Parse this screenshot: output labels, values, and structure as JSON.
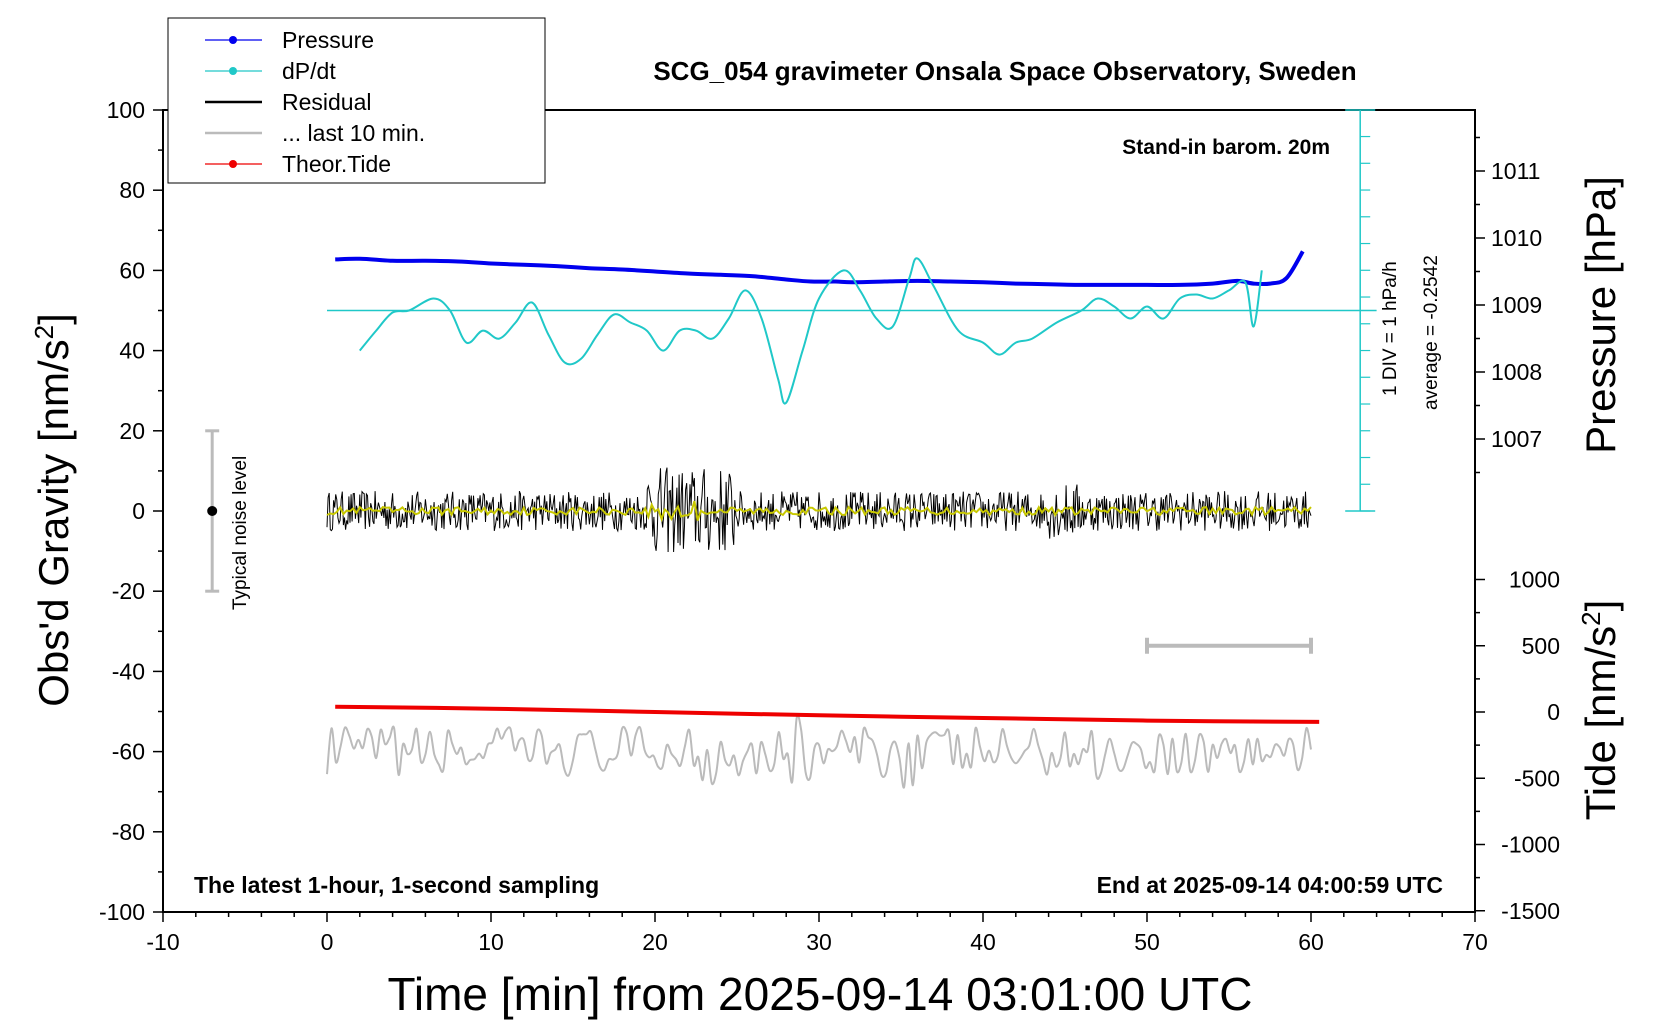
{
  "chart_data": {
    "type": "line",
    "title": "SCG_054 gravimeter Onsala Space Observatory, Sweden",
    "xlabel": "Time [min] from 2025-09-14 03:01:00 UTC",
    "ylabel": "Obs'd Gravity [nm/s",
    "ylabel_sup": "2",
    "ylabel_end": "]",
    "y2label": "Pressure [hPa]",
    "y3label": "Tide [nm/s",
    "y3label_sup": "2",
    "y3label_end": "]",
    "xlim": [
      -10,
      70
    ],
    "ylim": [
      -100,
      100
    ],
    "xticks": [
      -10,
      0,
      10,
      20,
      30,
      40,
      50,
      60,
      70
    ],
    "yticks": [
      100,
      80,
      60,
      40,
      20,
      0,
      -20,
      -40,
      -60,
      -80,
      -100
    ],
    "pressure_ticks": [
      1011,
      1010,
      1009,
      1008,
      1007
    ],
    "tide_ticks": [
      1000,
      500,
      0,
      -500,
      -1000,
      -1500
    ],
    "legend_position": "top-left",
    "legend": [
      {
        "label": "Pressure",
        "color": "#0000ee",
        "marker": true
      },
      {
        "label": "dP/dt",
        "color": "#20c8c8",
        "marker": true
      },
      {
        "label": "Residual",
        "color": "#000000",
        "marker": false
      },
      {
        "label": "... last 10 min.",
        "color": "#bbbbbb",
        "marker": false
      },
      {
        "label": "Theor.Tide",
        "color": "#ee0000",
        "marker": true
      }
    ],
    "annotations": {
      "station_note": "Stand-in barom. 20m",
      "scale_note": "1 DIV = 1 hPa/h",
      "average_note": "average = -0.2542",
      "noise_label": "Typical noise level",
      "bottom_left": "The latest 1-hour, 1-second sampling",
      "bottom_right": "End at 2025-09-14 04:00:59 UTC"
    },
    "noise_bar": {
      "x": -7,
      "y_low": -20,
      "y_high": 20
    },
    "last10_bar": {
      "x_start": 50,
      "x_end": 60,
      "tide_value": 500
    },
    "dpdt_zero_level": 50,
    "series": [
      {
        "name": "Pressure",
        "color": "#0000ee",
        "x": [
          0.5,
          2,
          4,
          6,
          8,
          10,
          12,
          14,
          16,
          18,
          20,
          22,
          24,
          26,
          28,
          29.5,
          31,
          32,
          34,
          36,
          38,
          40,
          42,
          44,
          46,
          48,
          50,
          52,
          54,
          55.5,
          56.5,
          57.5,
          58.5,
          59.5
        ],
        "y": [
          1009.68,
          1009.69,
          1009.66,
          1009.66,
          1009.65,
          1009.62,
          1009.6,
          1009.58,
          1009.55,
          1009.53,
          1009.5,
          1009.47,
          1009.45,
          1009.43,
          1009.38,
          1009.35,
          1009.35,
          1009.34,
          1009.35,
          1009.36,
          1009.35,
          1009.34,
          1009.32,
          1009.31,
          1009.3,
          1009.3,
          1009.3,
          1009.3,
          1009.32,
          1009.36,
          1009.32,
          1009.32,
          1009.4,
          1009.8
        ]
      },
      {
        "name": "dP/dt",
        "color": "#20c8c8",
        "x": [
          2,
          3,
          4,
          5,
          6.5,
          7.5,
          8.5,
          9.5,
          10.5,
          11.5,
          12.5,
          13.5,
          14.5,
          15.5,
          16.5,
          17.5,
          18.5,
          19.5,
          20.5,
          21.5,
          22.5,
          23.5,
          24.5,
          25.5,
          26.5,
          27.5,
          28,
          29,
          30,
          31.5,
          32.5,
          33.5,
          34.5,
          35.5,
          36,
          37,
          38.5,
          40,
          41,
          42,
          43,
          44.5,
          46,
          47,
          48,
          49,
          50,
          51,
          52,
          53,
          54,
          55,
          56,
          56.5,
          57
        ],
        "y": [
          40,
          45,
          49.5,
          50,
          53,
          50,
          42,
          45,
          43,
          47,
          52,
          44,
          37,
          38,
          44,
          49,
          47,
          45,
          40,
          45,
          45,
          43,
          48,
          55,
          48,
          33,
          27,
          40,
          53,
          60,
          55,
          48,
          46,
          58,
          63,
          56,
          45,
          42,
          39,
          42,
          43,
          47,
          50,
          53,
          51,
          48,
          51,
          48,
          53,
          54,
          53,
          55,
          57,
          46,
          60
        ]
      },
      {
        "name": "Residual",
        "color": "#000000",
        "amplitude": 5,
        "x_range": [
          0,
          60
        ],
        "center": 0
      },
      {
        "name": "Residual (smoothed)",
        "color": "#c8c800",
        "amplitude": 1,
        "x_range": [
          0,
          60
        ],
        "center": 0
      },
      {
        "name": "... last 10 min.",
        "color": "#bbbbbb",
        "amplitude": 5,
        "x_range": [
          0,
          60
        ],
        "center": -60
      },
      {
        "name": "Theor.Tide",
        "color": "#ee0000",
        "x": [
          0.5,
          10,
          20,
          30,
          40,
          50,
          60.5
        ],
        "y": [
          40,
          25,
          0,
          -25,
          -45,
          -65,
          -75
        ]
      }
    ]
  },
  "colors": {
    "pressure": "#0000ee",
    "dpdt": "#20c8c8",
    "residual": "#000000",
    "smoothed": "#c8c800",
    "last10": "#bbbbbb",
    "tide": "#ee0000"
  }
}
